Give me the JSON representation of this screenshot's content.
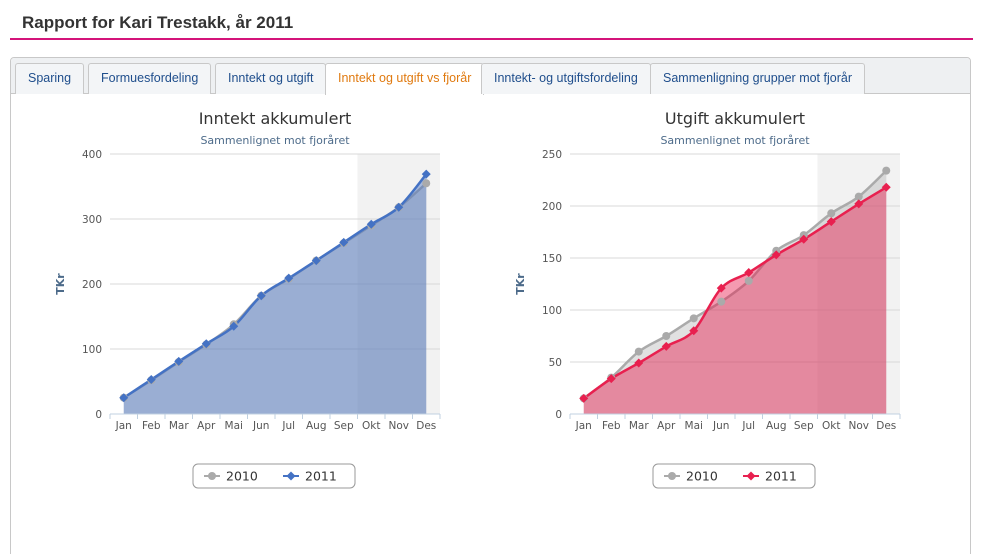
{
  "header": {
    "title": "Rapport for Kari Trestakk, år 2011"
  },
  "tabs": [
    {
      "label": "Sparing",
      "active": false
    },
    {
      "label": "Formuesfordeling",
      "active": false
    },
    {
      "label": "Inntekt og utgift",
      "active": false
    },
    {
      "label": "Inntekt og utgift vs fjorår",
      "active": true
    },
    {
      "label": "Inntekt- og utgiftsfordeling",
      "active": false
    },
    {
      "label": "Sammenligning grupper mot fjorår",
      "active": false
    }
  ],
  "colors": {
    "accent": "#d4147a",
    "active_tab": "#e07a10",
    "series_2010": "#aaaaaa",
    "income_2011": "#4472c4",
    "expense_2011": "#e8204f"
  },
  "chart_data": [
    {
      "type": "area",
      "title": "Inntekt akkumulert",
      "subtitle": "Sammenlignet mot fjoråret",
      "ylabel": "TKr",
      "ylim": [
        0,
        400
      ],
      "yticks": [
        0,
        100,
        200,
        300,
        400
      ],
      "categories": [
        "Jan",
        "Feb",
        "Mar",
        "Apr",
        "Mai",
        "Jun",
        "Jul",
        "Aug",
        "Sep",
        "Okt",
        "Nov",
        "Des"
      ],
      "shaded_from": "Okt",
      "legend_position": "bottom-center",
      "series": [
        {
          "name": "2010",
          "color": "#aaaaaa",
          "values": [
            25,
            52,
            80,
            107,
            138,
            182,
            208,
            236,
            263,
            290,
            318,
            355
          ]
        },
        {
          "name": "2011",
          "color": "#4472c4",
          "values": [
            25,
            53,
            81,
            108,
            135,
            182,
            209,
            236,
            264,
            292,
            318,
            369
          ]
        }
      ]
    },
    {
      "type": "area",
      "title": "Utgift akkumulert",
      "subtitle": "Sammenlignet mot fjoråret",
      "ylabel": "TKr",
      "ylim": [
        0,
        250
      ],
      "yticks": [
        0,
        50,
        100,
        150,
        200,
        250
      ],
      "categories": [
        "Jan",
        "Feb",
        "Mar",
        "Apr",
        "Mai",
        "Jun",
        "Jul",
        "Aug",
        "Sep",
        "Okt",
        "Nov",
        "Des"
      ],
      "shaded_from": "Okt",
      "legend_position": "bottom-center",
      "series": [
        {
          "name": "2010",
          "color": "#aaaaaa",
          "values": [
            15,
            35,
            60,
            75,
            92,
            108,
            128,
            157,
            172,
            193,
            209,
            234
          ]
        },
        {
          "name": "2011",
          "color": "#e8204f",
          "values": [
            15,
            34,
            49,
            65,
            80,
            121,
            136,
            153,
            168,
            185,
            202,
            218
          ]
        }
      ]
    }
  ]
}
